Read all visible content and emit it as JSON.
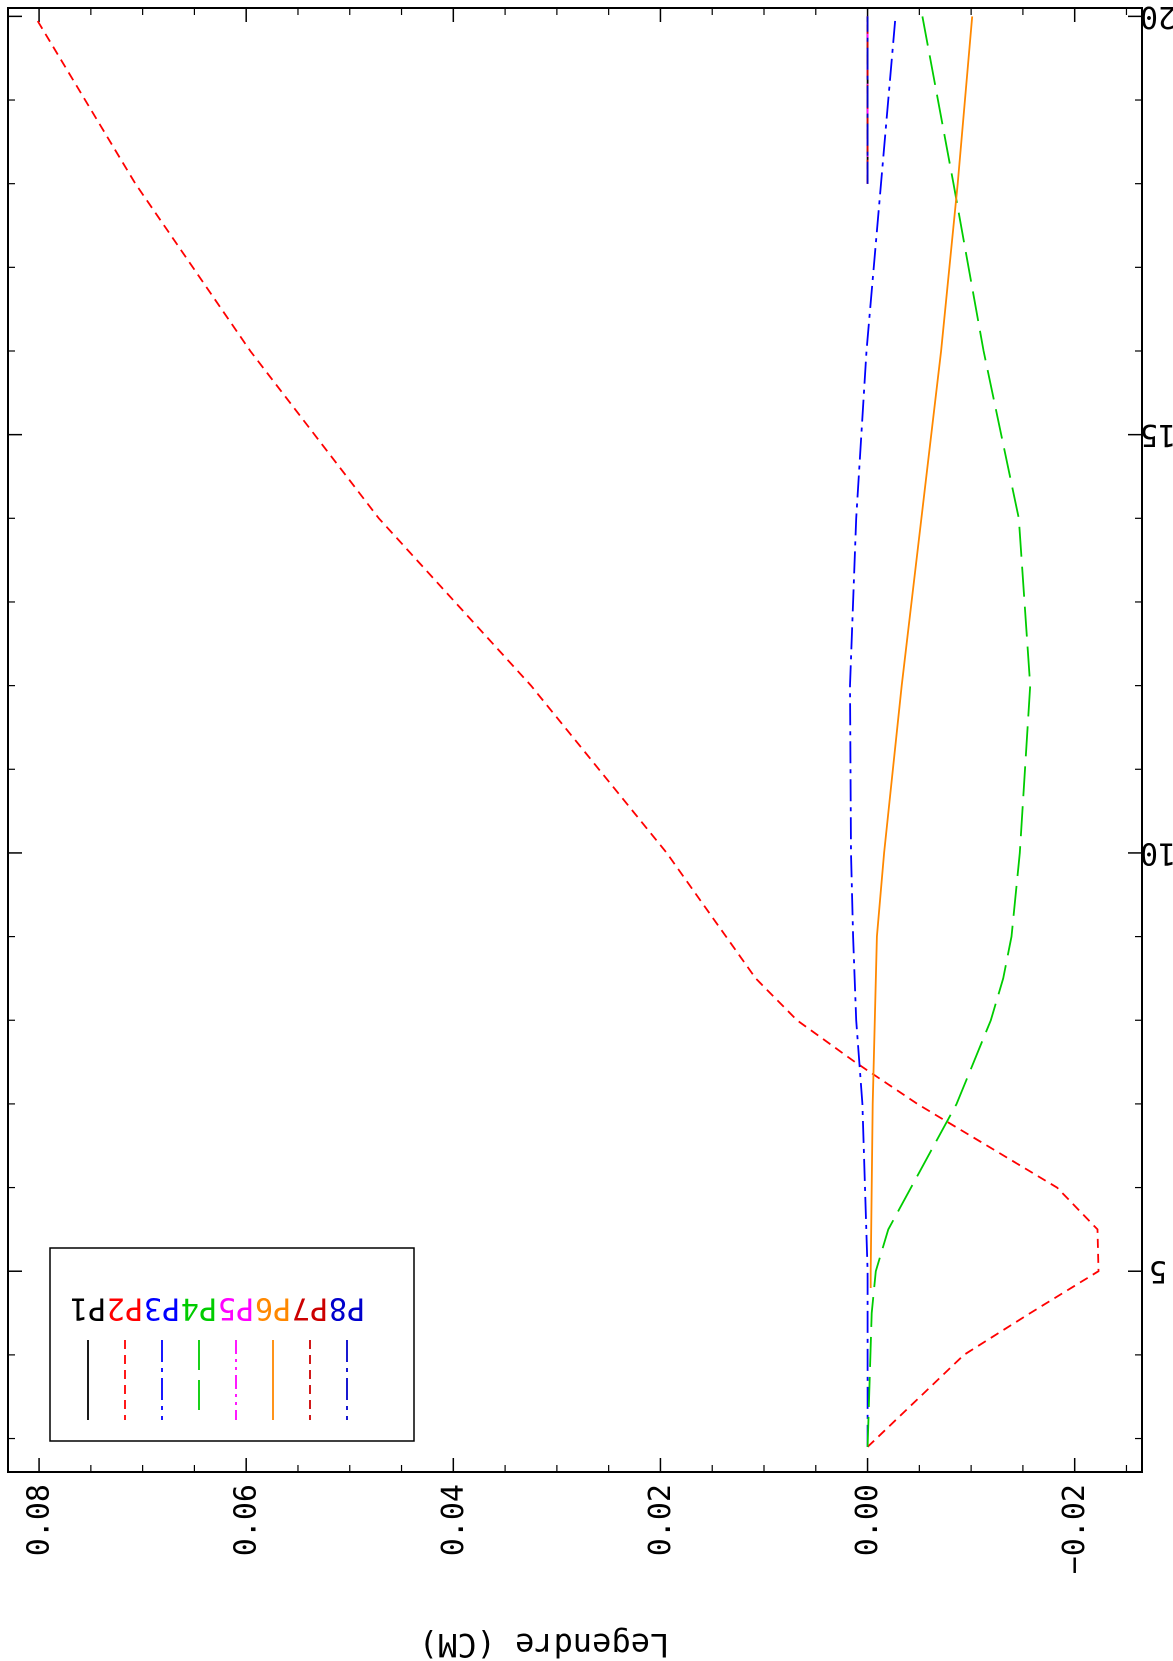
{
  "chart_data": {
    "type": "line",
    "title": "",
    "xlabel": "",
    "ylabel": "Legendre (CM)",
    "xlim": [
      2.6,
      20.1
    ],
    "ylim": [
      -0.0265,
      0.083
    ],
    "x_ticks": [
      5,
      10,
      15,
      20
    ],
    "y_ticks": [
      -0.02,
      0.0,
      0.02,
      0.04,
      0.06,
      0.08
    ],
    "y_tick_labels": [
      "−0.02",
      "0.00",
      "0.02",
      "0.04",
      "0.06",
      "0.08"
    ],
    "grid": false,
    "legend_position": "top-left",
    "series": [
      {
        "name": "P1",
        "color": "#000000",
        "dash": "solid",
        "x": [
          18.0,
          20.0
        ],
        "y": [
          0.0,
          0.0
        ]
      },
      {
        "name": "P2",
        "color": "#ff0000",
        "dash": "dashed",
        "x": [
          2.9,
          4.0,
          4.5,
          5.0,
          5.5,
          6.0,
          7.0,
          7.5,
          8.0,
          8.5,
          10.0,
          12.0,
          14.0,
          16.0,
          18.0,
          20.0
        ],
        "y": [
          0.0,
          -0.0093,
          -0.0157,
          -0.0223,
          -0.0222,
          -0.0183,
          -0.0048,
          0.0012,
          0.0068,
          0.0108,
          0.0194,
          0.0325,
          0.0472,
          0.0596,
          0.0707,
          0.0804
        ]
      },
      {
        "name": "P3",
        "color": "#0000ff",
        "dash": "dashdot",
        "x": [
          2.9,
          5.0,
          7.0,
          8.0,
          9.0,
          10.0,
          12.0,
          14.0,
          16.0,
          18.0,
          20.0
        ],
        "y": [
          0.0,
          0.0,
          0.0005,
          0.0011,
          0.0014,
          0.0016,
          0.0017,
          0.0011,
          0.0001,
          -0.0013,
          -0.0027
        ]
      },
      {
        "name": "P4",
        "color": "#00cc00",
        "dash": "longdash",
        "x": [
          2.9,
          4.5,
          5.0,
          5.5,
          6.5,
          7.0,
          8.0,
          8.5,
          9.0,
          10.0,
          12.0,
          14.0,
          16.0,
          18.0,
          20.0
        ],
        "y": [
          0.0,
          -0.0004,
          -0.0008,
          -0.002,
          -0.0064,
          -0.0086,
          -0.0119,
          -0.0131,
          -0.0139,
          -0.0147,
          -0.0157,
          -0.0146,
          -0.0112,
          -0.0083,
          -0.0053
        ]
      },
      {
        "name": "P5",
        "color": "#ff00ff",
        "dash": "dashdotdot",
        "x": [
          18.0,
          20.0
        ],
        "y": [
          0.0,
          0.0
        ]
      },
      {
        "name": "P6",
        "color": "#ff8800",
        "dash": "solid",
        "x": [
          4.8,
          5.0,
          7.0,
          9.0,
          10.0,
          12.0,
          14.0,
          16.0,
          18.0,
          20.0
        ],
        "y": [
          -0.0003,
          -0.0003,
          -0.0005,
          -0.0009,
          -0.0016,
          -0.0033,
          -0.0052,
          -0.0071,
          -0.0087,
          -0.0101
        ]
      },
      {
        "name": "P7",
        "color": "#cc0000",
        "dash": "dashed",
        "x": [
          18.0,
          20.0
        ],
        "y": [
          0.0,
          0.0
        ]
      },
      {
        "name": "P8",
        "color": "#0000cc",
        "dash": "dashdot",
        "x": [
          18.0,
          20.0
        ],
        "y": [
          0.0,
          0.0
        ]
      }
    ]
  }
}
